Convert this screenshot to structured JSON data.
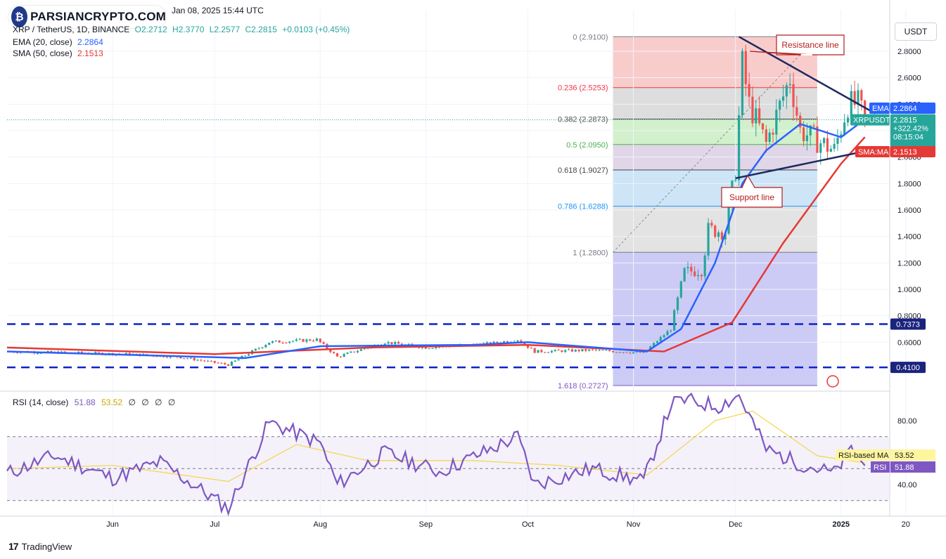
{
  "header": {
    "logo_text": "PARSIANCRYPTO.COM",
    "timestamp": "Jan 08, 2025 15:44 UTC",
    "symbol": "XRP / TetherUS, 1D, BINANCE",
    "ohlc": {
      "o": "O2.2712",
      "h": "H2.3770",
      "l": "L2.2577",
      "c": "C2.2815",
      "chg": "+0.0103 (+0.45%)"
    },
    "ema_label": "EMA (20, close)",
    "ema_value": "2.2864",
    "sma_label": "SMA (50, close)",
    "sma_value": "2.1513"
  },
  "currency_button": "USDT",
  "footer": {
    "brand": "TradingView",
    "brand_mark": "17"
  },
  "colors": {
    "up": "#26a69a",
    "down": "#ef5350",
    "ema": "#2962ff",
    "sma": "#e53935",
    "rsi": "#7e57c2",
    "rsi_ma": "#f5d547",
    "dash": "#0d22c9",
    "trend": "#1c2a5e",
    "price_label": "#26a69a"
  },
  "chart_data": [
    {
      "type": "candlestick",
      "title": "XRP / TetherUS, 1D, BINANCE",
      "ylim": [
        0.272,
        2.97
      ],
      "y_ticks": [
        "2.8000",
        "2.6000",
        "2.4000",
        "2.2000",
        "2.0000",
        "1.8000",
        "1.6000",
        "1.4000",
        "1.2000",
        "1.0000",
        "0.8000",
        "0.6000"
      ],
      "x_ticks": [
        "Jun",
        "Jul",
        "Aug",
        "Sep",
        "Oct",
        "Nov",
        "Dec",
        "2025",
        "20"
      ],
      "price_badge": {
        "symbol": "XRPUSDT",
        "price": "2.2815",
        "change": "+322.42%",
        "countdown": "08:15:04"
      },
      "ema_badge": {
        "name": "EMA",
        "value": "2.2864"
      },
      "sma_badge": {
        "name": "SMA:MA",
        "value": "2.1513"
      },
      "horizontal_levels": [
        {
          "value": 0.7373,
          "label": "0.7373"
        },
        {
          "value": 0.41,
          "label": "0.4100"
        }
      ],
      "fibonacci": [
        {
          "ratio": "0",
          "value": 2.91,
          "label": "0 (2.9100)",
          "color": "#787b86"
        },
        {
          "ratio": "0.236",
          "value": 2.5253,
          "label": "0.236 (2.5253)",
          "color": "#f23645"
        },
        {
          "ratio": "0.382",
          "value": 2.2873,
          "label": "0.382 (2.2873)",
          "color": "#555555"
        },
        {
          "ratio": "0.5",
          "value": 2.095,
          "label": "0.5 (2.0950)",
          "color": "#4caf50"
        },
        {
          "ratio": "0.618",
          "value": 1.9027,
          "label": "0.618 (1.9027)",
          "color": "#444444"
        },
        {
          "ratio": "0.786",
          "value": 1.6288,
          "label": "0.786 (1.6288)",
          "color": "#2196f3"
        },
        {
          "ratio": "1",
          "value": 1.28,
          "label": "1 (1.2800)",
          "color": "#787b86"
        },
        {
          "ratio": "1.618",
          "value": 0.2727,
          "label": "1.618 (0.2727)",
          "color": "#7e57c2"
        }
      ],
      "annotations": [
        {
          "text": "Resistance line"
        },
        {
          "text": "Support line"
        }
      ],
      "resistance_line": [
        {
          "date": "2024-12-02",
          "value": 2.91
        },
        {
          "date": "2025-01-11",
          "value": 2.33
        }
      ],
      "support_line": [
        {
          "date": "2024-12-01",
          "value": 1.84
        },
        {
          "date": "2025-01-11",
          "value": 2.06
        }
      ],
      "price_path": [
        {
          "date": "2024-05-01",
          "value": 0.53
        },
        {
          "date": "2024-05-20",
          "value": 0.52
        },
        {
          "date": "2024-06-05",
          "value": 0.51
        },
        {
          "date": "2024-06-20",
          "value": 0.49
        },
        {
          "date": "2024-07-05",
          "value": 0.43
        },
        {
          "date": "2024-07-17",
          "value": 0.6
        },
        {
          "date": "2024-07-31",
          "value": 0.62
        },
        {
          "date": "2024-08-06",
          "value": 0.49
        },
        {
          "date": "2024-08-20",
          "value": 0.6
        },
        {
          "date": "2024-09-01",
          "value": 0.56
        },
        {
          "date": "2024-09-20",
          "value": 0.59
        },
        {
          "date": "2024-09-28",
          "value": 0.62
        },
        {
          "date": "2024-10-03",
          "value": 0.53
        },
        {
          "date": "2024-10-20",
          "value": 0.54
        },
        {
          "date": "2024-11-04",
          "value": 0.52
        },
        {
          "date": "2024-11-12",
          "value": 0.7
        },
        {
          "date": "2024-11-16",
          "value": 1.13
        },
        {
          "date": "2024-11-21",
          "value": 1.15
        },
        {
          "date": "2024-11-23",
          "value": 1.45
        },
        {
          "date": "2024-11-28",
          "value": 1.44
        },
        {
          "date": "2024-12-01",
          "value": 1.9
        },
        {
          "date": "2024-12-03",
          "value": 2.7
        },
        {
          "date": "2024-12-05",
          "value": 2.4
        },
        {
          "date": "2024-12-10",
          "value": 2.1
        },
        {
          "date": "2024-12-17",
          "value": 2.6
        },
        {
          "date": "2024-12-20",
          "value": 2.2
        },
        {
          "date": "2024-12-30",
          "value": 2.05
        },
        {
          "date": "2025-01-03",
          "value": 2.4
        },
        {
          "date": "2025-01-06",
          "value": 2.4
        },
        {
          "date": "2025-01-08",
          "value": 2.28
        }
      ],
      "ema_path": [
        {
          "date": "2024-05-01",
          "value": 0.53
        },
        {
          "date": "2024-07-10",
          "value": 0.48
        },
        {
          "date": "2024-08-01",
          "value": 0.57
        },
        {
          "date": "2024-09-15",
          "value": 0.58
        },
        {
          "date": "2024-10-01",
          "value": 0.6
        },
        {
          "date": "2024-11-05",
          "value": 0.53
        },
        {
          "date": "2024-11-15",
          "value": 0.7
        },
        {
          "date": "2024-11-25",
          "value": 1.2
        },
        {
          "date": "2024-12-03",
          "value": 1.8
        },
        {
          "date": "2024-12-10",
          "value": 2.05
        },
        {
          "date": "2024-12-20",
          "value": 2.25
        },
        {
          "date": "2025-01-01",
          "value": 2.15
        },
        {
          "date": "2025-01-08",
          "value": 2.2864
        }
      ],
      "sma_path": [
        {
          "date": "2024-05-01",
          "value": 0.56
        },
        {
          "date": "2024-07-01",
          "value": 0.51
        },
        {
          "date": "2024-08-15",
          "value": 0.56
        },
        {
          "date": "2024-10-01",
          "value": 0.58
        },
        {
          "date": "2024-11-10",
          "value": 0.53
        },
        {
          "date": "2024-11-30",
          "value": 0.75
        },
        {
          "date": "2024-12-15",
          "value": 1.35
        },
        {
          "date": "2025-01-01",
          "value": 1.95
        },
        {
          "date": "2025-01-08",
          "value": 2.1513
        }
      ]
    },
    {
      "type": "line",
      "title": "RSI (14, close)",
      "values_display": [
        "51.88",
        "53.52",
        "∅",
        "∅",
        "∅",
        "∅"
      ],
      "ylim": [
        20,
        100
      ],
      "y_ticks": [
        "80.00",
        "40.00"
      ],
      "bands": [
        70,
        50,
        30
      ],
      "rsi_badge": {
        "name": "RSI",
        "value": "51.88"
      },
      "rsi_ma_badge": {
        "name": "RSI-based MA",
        "value": "53.52"
      },
      "rsi_path": [
        {
          "date": "2024-05-01",
          "value": 47
        },
        {
          "date": "2024-05-15",
          "value": 58
        },
        {
          "date": "2024-06-01",
          "value": 44
        },
        {
          "date": "2024-06-15",
          "value": 54
        },
        {
          "date": "2024-07-05",
          "value": 25
        },
        {
          "date": "2024-07-17",
          "value": 79
        },
        {
          "date": "2024-08-01",
          "value": 66
        },
        {
          "date": "2024-08-06",
          "value": 40
        },
        {
          "date": "2024-08-20",
          "value": 60
        },
        {
          "date": "2024-09-05",
          "value": 48
        },
        {
          "date": "2024-09-20",
          "value": 62
        },
        {
          "date": "2024-09-28",
          "value": 70
        },
        {
          "date": "2024-10-03",
          "value": 40
        },
        {
          "date": "2024-10-20",
          "value": 50
        },
        {
          "date": "2024-11-04",
          "value": 42
        },
        {
          "date": "2024-11-12",
          "value": 90
        },
        {
          "date": "2024-11-16",
          "value": 93
        },
        {
          "date": "2024-11-26",
          "value": 89
        },
        {
          "date": "2024-12-02",
          "value": 96
        },
        {
          "date": "2024-12-10",
          "value": 62
        },
        {
          "date": "2024-12-20",
          "value": 53
        },
        {
          "date": "2024-12-30",
          "value": 47
        },
        {
          "date": "2025-01-04",
          "value": 62
        },
        {
          "date": "2025-01-08",
          "value": 51.88
        }
      ],
      "rsi_ma_path": [
        {
          "date": "2024-05-01",
          "value": 50
        },
        {
          "date": "2024-06-01",
          "value": 52
        },
        {
          "date": "2024-07-05",
          "value": 42
        },
        {
          "date": "2024-07-25",
          "value": 65
        },
        {
          "date": "2024-08-15",
          "value": 55
        },
        {
          "date": "2024-09-15",
          "value": 55
        },
        {
          "date": "2024-10-10",
          "value": 52
        },
        {
          "date": "2024-11-05",
          "value": 46
        },
        {
          "date": "2024-11-25",
          "value": 80
        },
        {
          "date": "2024-12-06",
          "value": 86
        },
        {
          "date": "2024-12-25",
          "value": 58
        },
        {
          "date": "2025-01-08",
          "value": 53.52
        }
      ]
    }
  ]
}
